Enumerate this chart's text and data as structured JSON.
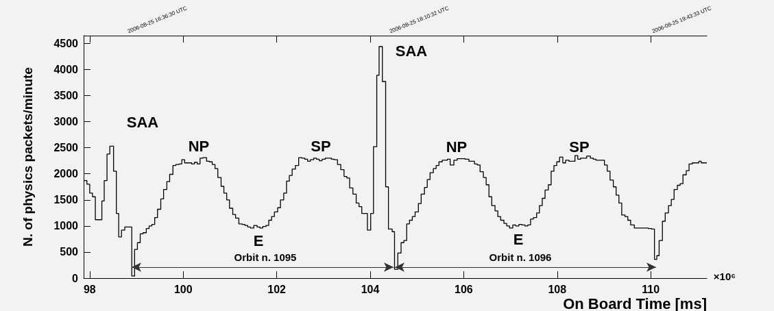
{
  "chart_data": {
    "type": "step",
    "xlabel": "On Board Time [ms]",
    "ylabel": "N. of physics packets/minute",
    "series": [
      {
        "color": "#000000",
        "x": [
          97.87,
          97.94,
          98.0,
          98.06,
          98.12,
          98.26,
          98.31,
          98.37,
          98.43,
          98.51,
          98.57,
          98.62,
          98.68,
          98.75,
          98.9,
          98.96,
          99.02,
          99.08,
          99.14,
          99.21,
          99.27,
          99.33,
          99.39,
          99.45,
          99.52,
          99.58,
          99.65,
          99.71,
          99.78,
          99.84,
          99.91,
          99.97,
          100.03,
          100.1,
          100.18,
          100.24,
          100.3,
          100.36,
          100.42,
          100.5,
          100.56,
          100.62,
          100.68,
          100.74,
          100.81,
          100.87,
          100.93,
          100.99,
          101.06,
          101.12,
          101.19,
          101.26,
          101.32,
          101.38,
          101.44,
          101.51,
          101.58,
          101.64,
          101.7,
          101.77,
          101.83,
          101.89,
          101.95,
          102.02,
          102.08,
          102.15,
          102.21,
          102.27,
          102.33,
          102.4,
          102.47,
          102.54,
          102.6,
          102.66,
          102.72,
          102.79,
          102.85,
          102.91,
          102.97,
          103.04,
          103.11,
          103.17,
          103.23,
          103.3,
          103.37,
          103.44,
          103.5,
          103.56,
          103.63,
          103.7,
          103.76,
          103.82,
          103.88,
          103.94,
          104.01,
          104.07,
          104.14,
          104.19,
          104.26,
          104.33,
          104.39,
          104.47,
          104.52,
          104.59,
          104.66,
          104.72,
          104.78,
          104.84,
          104.9,
          104.96,
          105.03,
          105.09,
          105.16,
          105.22,
          105.28,
          105.35,
          105.41,
          105.47,
          105.54,
          105.65,
          105.71,
          105.79,
          105.86,
          106.03,
          106.11,
          106.23,
          106.29,
          106.35,
          106.42,
          106.48,
          106.54,
          106.6,
          106.67,
          106.73,
          106.79,
          106.86,
          106.92,
          106.98,
          107.05,
          107.11,
          107.18,
          107.24,
          107.31,
          107.37,
          107.43,
          107.49,
          107.56,
          107.62,
          107.68,
          107.74,
          107.81,
          107.87,
          107.93,
          107.99,
          108.05,
          108.12,
          108.18,
          108.25,
          108.38,
          108.44,
          108.5,
          108.63,
          108.71,
          108.77,
          108.83,
          109.01,
          109.07,
          109.13,
          109.2,
          109.26,
          109.32,
          109.38,
          109.45,
          109.51,
          109.57,
          109.65,
          109.95,
          110.02,
          110.08,
          110.13,
          110.18,
          110.25,
          110.31,
          110.38,
          110.44,
          110.5,
          110.57,
          110.63,
          110.69,
          110.76,
          110.82,
          110.89,
          111.03,
          111.08,
          111.2
        ],
        "values": [
          1870,
          1800,
          1630,
          1560,
          1120,
          1480,
          1870,
          2380,
          2530,
          2050,
          1240,
          790,
          920,
          980,
          40,
          550,
          680,
          850,
          870,
          950,
          1000,
          1030,
          1160,
          1320,
          1520,
          1700,
          1850,
          1990,
          2160,
          2180,
          2190,
          2270,
          2210,
          2210,
          2190,
          2220,
          2190,
          2300,
          2310,
          2240,
          2230,
          2180,
          2100,
          1930,
          1760,
          1630,
          1500,
          1340,
          1220,
          1150,
          1040,
          1030,
          1010,
          980,
          960,
          1010,
          980,
          960,
          990,
          1010,
          1110,
          1180,
          1270,
          1350,
          1500,
          1630,
          1860,
          1970,
          2090,
          2160,
          2310,
          2300,
          2280,
          2240,
          2270,
          2300,
          2280,
          2250,
          2280,
          2300,
          2300,
          2280,
          2270,
          2180,
          2080,
          1950,
          1920,
          1730,
          1610,
          1440,
          1370,
          1240,
          1240,
          920,
          1240,
          2520,
          3890,
          4440,
          3770,
          1750,
          940,
          890,
          170,
          480,
          680,
          720,
          1040,
          1110,
          1180,
          1270,
          1430,
          1610,
          1740,
          1890,
          2020,
          2100,
          2160,
          2230,
          2260,
          2280,
          2170,
          2260,
          2290,
          2280,
          2240,
          2190,
          2170,
          2040,
          1930,
          1790,
          1560,
          1390,
          1290,
          1180,
          1110,
          1050,
          1000,
          960,
          1020,
          1000,
          1030,
          1020,
          1000,
          1020,
          1130,
          1160,
          1250,
          1390,
          1530,
          1690,
          1790,
          2050,
          2160,
          2230,
          2320,
          2210,
          2260,
          2240,
          2350,
          2280,
          2300,
          2340,
          2300,
          2280,
          2260,
          2170,
          2050,
          1880,
          1750,
          1590,
          1440,
          1210,
          1180,
          1110,
          1020,
          960,
          950,
          940,
          360,
          430,
          720,
          1090,
          1250,
          1390,
          1510,
          1700,
          1780,
          1810,
          1980,
          2060,
          2190,
          2210,
          2240,
          2210,
          2210
        ]
      }
    ],
    "xlim": [
      97.87,
      111.2
    ],
    "xticks": [
      98,
      100,
      102,
      104,
      106,
      108,
      110
    ],
    "ylim": [
      0,
      4650
    ],
    "yticks": [
      0,
      500,
      1000,
      1500,
      2000,
      2500,
      3000,
      3500,
      4000,
      4500
    ],
    "marker": "none",
    "line_style": "solid",
    "annotations": [
      "SAA",
      "SAA",
      "NP",
      "SP",
      "E",
      "NP",
      "SP",
      "E",
      "Orbit n. 1095",
      "Orbit n. 1096",
      "×10⁶",
      "2006-08-25 16:36:30 UTC",
      "2006-08-25 18:10:32 UTC",
      "2006-08-25 19:43:33 UTC"
    ]
  }
}
